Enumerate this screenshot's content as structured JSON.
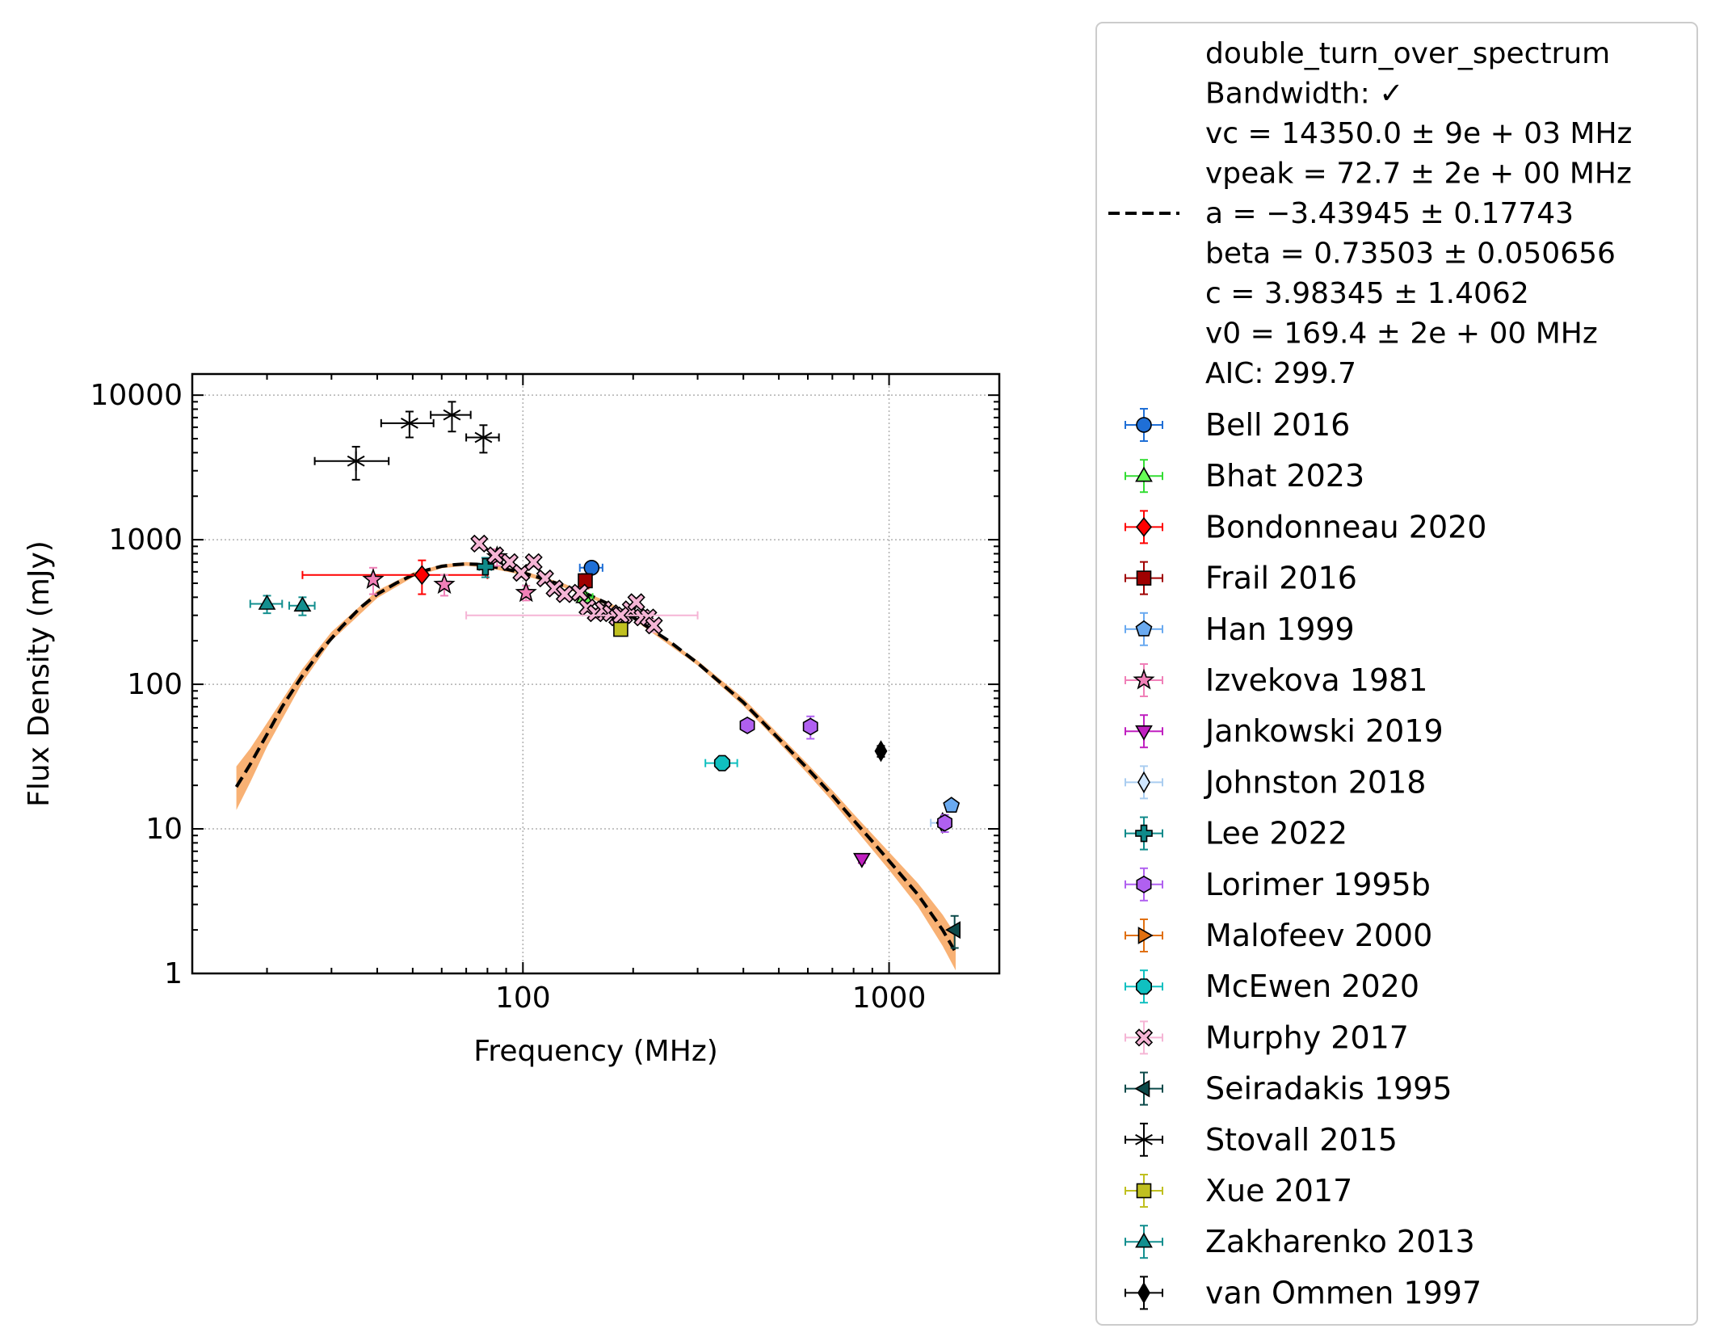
{
  "chart_data": {
    "type": "scatter",
    "xlabel": "Frequency (MHz)",
    "ylabel": "Flux Density (mJy)",
    "xscale": "log",
    "yscale": "log",
    "xlim": [
      12.5,
      2000
    ],
    "ylim": [
      1,
      14000
    ],
    "grid": true,
    "legend_position": "outside-right",
    "x_ticks": [
      {
        "value": 100,
        "label": "100"
      },
      {
        "value": 1000,
        "label": "1000"
      }
    ],
    "y_ticks": [
      {
        "value": 1,
        "label": "1"
      },
      {
        "value": 10,
        "label": "10"
      },
      {
        "value": 100,
        "label": "100"
      },
      {
        "value": 1000,
        "label": "1000"
      },
      {
        "value": 10000,
        "label": "10000"
      }
    ],
    "fit": {
      "model": "double_turn_over_spectrum",
      "color": "#000000",
      "band_color": "#f7a35c",
      "text_lines": [
        "double_turn_over_spectrum",
        "Bandwidth: ✓",
        "vc = 14350.0 ± 9e + 03 MHz",
        "vpeak = 72.7 ± 2e + 00 MHz",
        "a = −3.43945 ± 0.17743",
        "beta = 0.73503 ± 0.050656",
        "c = 3.98345 ± 1.4062",
        "v0 = 169.4 ± 2e + 00 MHz",
        "AIC: 299.7"
      ],
      "curve": [
        [
          16.5,
          19.5
        ],
        [
          18,
          28
        ],
        [
          20,
          45
        ],
        [
          22,
          70
        ],
        [
          25,
          115
        ],
        [
          28,
          170
        ],
        [
          32,
          250
        ],
        [
          36,
          340
        ],
        [
          40,
          420
        ],
        [
          45,
          500
        ],
        [
          50,
          570
        ],
        [
          55,
          620
        ],
        [
          60,
          655
        ],
        [
          65,
          672
        ],
        [
          70,
          680
        ],
        [
          75,
          676
        ],
        [
          80,
          660
        ],
        [
          90,
          625
        ],
        [
          100,
          590
        ],
        [
          110,
          550
        ],
        [
          130,
          480
        ],
        [
          150,
          420
        ],
        [
          169,
          365
        ],
        [
          200,
          290
        ],
        [
          250,
          200
        ],
        [
          300,
          140
        ],
        [
          400,
          75
        ],
        [
          500,
          42
        ],
        [
          600,
          26
        ],
        [
          700,
          17
        ],
        [
          800,
          11.5
        ],
        [
          900,
          8.2
        ],
        [
          1000,
          6.0
        ],
        [
          1200,
          3.5
        ],
        [
          1400,
          2.0
        ],
        [
          1520,
          1.4
        ]
      ],
      "band": [
        [
          16.5,
          13.5,
          27
        ],
        [
          18,
          21,
          36
        ],
        [
          20,
          37,
          54
        ],
        [
          25,
          103,
          128
        ],
        [
          30,
          200,
          230
        ],
        [
          40,
          395,
          445
        ],
        [
          50,
          550,
          592
        ],
        [
          60,
          635,
          675
        ],
        [
          70,
          660,
          700
        ],
        [
          80,
          640,
          680
        ],
        [
          100,
          570,
          610
        ],
        [
          130,
          465,
          495
        ],
        [
          169,
          355,
          376
        ],
        [
          200,
          282,
          299
        ],
        [
          300,
          135,
          146
        ],
        [
          400,
          71,
          80
        ],
        [
          500,
          39.5,
          45
        ],
        [
          600,
          24,
          28
        ],
        [
          700,
          15.5,
          18.5
        ],
        [
          800,
          10.3,
          12.7
        ],
        [
          1000,
          5.2,
          6.9
        ],
        [
          1200,
          2.9,
          4.2
        ],
        [
          1400,
          1.55,
          2.55
        ],
        [
          1520,
          1.05,
          1.85
        ]
      ]
    },
    "series": [
      {
        "name": "Bell 2016",
        "marker": "circle",
        "color": "#1f6fd6",
        "ecolor": "#1f6fd6",
        "points": [
          {
            "x": 154,
            "y": 640,
            "xerr": [
              11,
              11
            ],
            "yerr": [
              60,
              60
            ]
          }
        ]
      },
      {
        "name": "Bhat 2023",
        "marker": "triangle-up",
        "color": "#66ff55",
        "ecolor": "#33dd33",
        "points": [
          {
            "x": 147,
            "y": 400,
            "xerr": [
              8,
              8
            ],
            "yerr": [
              30,
              30
            ]
          }
        ]
      },
      {
        "name": "Bondonneau 2020",
        "marker": "diamond",
        "color": "#ff0000",
        "ecolor": "#ff0000",
        "points": [
          {
            "x": 53,
            "y": 570,
            "xerr": [
              28,
              27
            ],
            "yerr": [
              150,
              150
            ]
          }
        ]
      },
      {
        "name": "Frail 2016",
        "marker": "square",
        "color": "#a00000",
        "ecolor": "#a00000",
        "points": [
          {
            "x": 148,
            "y": 520,
            "xerr": [
              3,
              3
            ],
            "yerr": [
              60,
              60
            ]
          }
        ]
      },
      {
        "name": "Han 1999",
        "marker": "pentagon",
        "color": "#6aaaf0",
        "ecolor": "#6aaaf0",
        "points": [
          {
            "x": 1480,
            "y": 14.5,
            "xerr": [
              0,
              0
            ],
            "yerr": [
              1.2,
              1.2
            ]
          }
        ]
      },
      {
        "name": "Izvekova 1981",
        "marker": "star",
        "color": "#f080b8",
        "ecolor": "#f080b8",
        "points": [
          {
            "x": 39,
            "y": 530,
            "xerr": [
              0,
              0
            ],
            "yerr": [
              110,
              110
            ]
          },
          {
            "x": 61,
            "y": 490,
            "xerr": [
              0,
              0
            ],
            "yerr": [
              80,
              80
            ]
          },
          {
            "x": 85,
            "y": 760,
            "xerr": [
              0,
              0
            ],
            "yerr": [
              100,
              100
            ]
          },
          {
            "x": 102,
            "y": 430,
            "xerr": [
              0,
              0
            ],
            "yerr": [
              50,
              50
            ]
          }
        ]
      },
      {
        "name": "Jankowski 2019",
        "marker": "triangle-down",
        "color": "#c020c0",
        "ecolor": "#c020c0",
        "points": [
          {
            "x": 843,
            "y": 6.2,
            "xerr": [
              0,
              0
            ],
            "yerr": [
              0.4,
              0.4
            ]
          }
        ]
      },
      {
        "name": "Johnston 2018",
        "marker": "thin-diamond",
        "color": "#cfe6ff",
        "ecolor": "#aacdf0",
        "points": [
          {
            "x": 1400,
            "y": 11,
            "xerr": [
              100,
              0
            ],
            "yerr": [
              0.8,
              0.8
            ]
          }
        ]
      },
      {
        "name": "Lee 2022",
        "marker": "plus",
        "color": "#0f8a8a",
        "ecolor": "#0f8a8a",
        "points": [
          {
            "x": 79,
            "y": 650,
            "xerr": [
              3,
              3
            ],
            "yerr": [
              100,
              100
            ]
          }
        ]
      },
      {
        "name": "Lorimer 1995b",
        "marker": "hexagon",
        "color": "#b060f0",
        "ecolor": "#b060f0",
        "points": [
          {
            "x": 410,
            "y": 52,
            "xerr": [
              0,
              0
            ],
            "yerr": [
              4,
              4
            ]
          },
          {
            "x": 610,
            "y": 51,
            "xerr": [
              0,
              0
            ],
            "yerr": [
              9,
              9
            ]
          },
          {
            "x": 1420,
            "y": 11,
            "xerr": [
              0,
              0
            ],
            "yerr": [
              1.5,
              1.5
            ]
          }
        ]
      },
      {
        "name": "Malofeev 2000",
        "marker": "triangle-right",
        "color": "#e07010",
        "ecolor": "#e07010",
        "points": []
      },
      {
        "name": "McEwen 2020",
        "marker": "octagon",
        "color": "#10c0c0",
        "ecolor": "#10c0c0",
        "points": [
          {
            "x": 350,
            "y": 28.5,
            "xerr": [
              35,
              35
            ],
            "yerr": [
              2,
              2
            ]
          }
        ]
      },
      {
        "name": "Murphy 2017",
        "marker": "x-filled",
        "color": "#f5b5d5",
        "ecolor": "#f5b5d5",
        "points": [
          {
            "x": 76,
            "y": 940,
            "xerr": [
              0,
              0
            ],
            "yerr": [
              60,
              60
            ]
          },
          {
            "x": 84,
            "y": 780,
            "xerr": [
              0,
              0
            ],
            "yerr": [
              50,
              50
            ]
          },
          {
            "x": 92,
            "y": 700,
            "xerr": [
              0,
              0
            ],
            "yerr": [
              50,
              50
            ]
          },
          {
            "x": 99,
            "y": 590,
            "xerr": [
              0,
              0
            ],
            "yerr": [
              40,
              40
            ]
          },
          {
            "x": 107,
            "y": 700,
            "xerr": [
              0,
              0
            ],
            "yerr": [
              50,
              50
            ]
          },
          {
            "x": 115,
            "y": 540,
            "xerr": [
              0,
              0
            ],
            "yerr": [
              40,
              40
            ]
          },
          {
            "x": 122,
            "y": 460,
            "xerr": [
              0,
              0
            ],
            "yerr": [
              30,
              30
            ]
          },
          {
            "x": 130,
            "y": 420,
            "xerr": [
              0,
              0
            ],
            "yerr": [
              30,
              30
            ]
          },
          {
            "x": 143,
            "y": 430,
            "xerr": [
              0,
              0
            ],
            "yerr": [
              30,
              30
            ]
          },
          {
            "x": 150,
            "y": 340,
            "xerr": [
              0,
              0
            ],
            "yerr": [
              25,
              25
            ]
          },
          {
            "x": 158,
            "y": 310,
            "xerr": [
              0,
              0
            ],
            "yerr": [
              25,
              25
            ]
          },
          {
            "x": 166,
            "y": 330,
            "xerr": [
              0,
              0
            ],
            "yerr": [
              25,
              25
            ]
          },
          {
            "x": 174,
            "y": 310,
            "xerr": [
              0,
              0
            ],
            "yerr": [
              25,
              25
            ]
          },
          {
            "x": 181,
            "y": 290,
            "xerr": [
              0,
              0
            ],
            "yerr": [
              25,
              25
            ]
          },
          {
            "x": 189,
            "y": 300,
            "xerr": [
              0,
              0
            ],
            "yerr": [
              25,
              25
            ]
          },
          {
            "x": 197,
            "y": 330,
            "xerr": [
              0,
              0
            ],
            "yerr": [
              25,
              25
            ]
          },
          {
            "x": 204,
            "y": 370,
            "xerr": [
              0,
              0
            ],
            "yerr": [
              25,
              25
            ]
          },
          {
            "x": 212,
            "y": 290,
            "xerr": [
              0,
              0
            ],
            "yerr": [
              25,
              25
            ]
          },
          {
            "x": 220,
            "y": 290,
            "xerr": [
              0,
              0
            ],
            "yerr": [
              25,
              25
            ]
          },
          {
            "x": 228,
            "y": 255,
            "xerr": [
              0,
              0
            ],
            "yerr": [
              25,
              25
            ]
          },
          {
            "x": 185,
            "y": 300,
            "xerr": [
              115,
              115
            ],
            "yerr": [
              20,
              20
            ]
          }
        ]
      },
      {
        "name": "Seiradakis 1995",
        "marker": "triangle-left",
        "color": "#0c4a4a",
        "ecolor": "#0c4a4a",
        "points": [
          {
            "x": 1510,
            "y": 2.0,
            "xerr": [
              0,
              0
            ],
            "yerr": [
              0.5,
              0.5
            ]
          }
        ]
      },
      {
        "name": "Stovall 2015",
        "marker": "star-line",
        "color": "#000000",
        "ecolor": "#000000",
        "points": [
          {
            "x": 35,
            "y": 3500,
            "xerr": [
              8,
              8
            ],
            "yerr": [
              900,
              900
            ]
          },
          {
            "x": 49,
            "y": 6400,
            "xerr": [
              8,
              8
            ],
            "yerr": [
              1300,
              1300
            ]
          },
          {
            "x": 64,
            "y": 7300,
            "xerr": [
              8,
              8
            ],
            "yerr": [
              1700,
              1700
            ]
          },
          {
            "x": 78,
            "y": 5100,
            "xerr": [
              8,
              8
            ],
            "yerr": [
              1100,
              1100
            ]
          }
        ]
      },
      {
        "name": "Xue 2017",
        "marker": "square",
        "color": "#c0c020",
        "ecolor": "#c0c020",
        "points": [
          {
            "x": 185,
            "y": 240,
            "xerr": [
              0,
              0
            ],
            "yerr": [
              15,
              15
            ]
          }
        ]
      },
      {
        "name": "Zakharenko 2013",
        "marker": "triangle-up",
        "color": "#138f8f",
        "ecolor": "#138f8f",
        "points": [
          {
            "x": 20,
            "y": 360,
            "xerr": [
              2,
              2
            ],
            "yerr": [
              50,
              50
            ]
          },
          {
            "x": 25,
            "y": 350,
            "xerr": [
              2,
              2
            ],
            "yerr": [
              50,
              50
            ]
          }
        ]
      },
      {
        "name": "van Ommen 1997",
        "marker": "thin-diamond",
        "color": "#000000",
        "ecolor": "#000000",
        "points": [
          {
            "x": 950,
            "y": 34.5,
            "xerr": [
              0,
              0
            ],
            "yerr": [
              3,
              3
            ]
          }
        ]
      }
    ]
  }
}
